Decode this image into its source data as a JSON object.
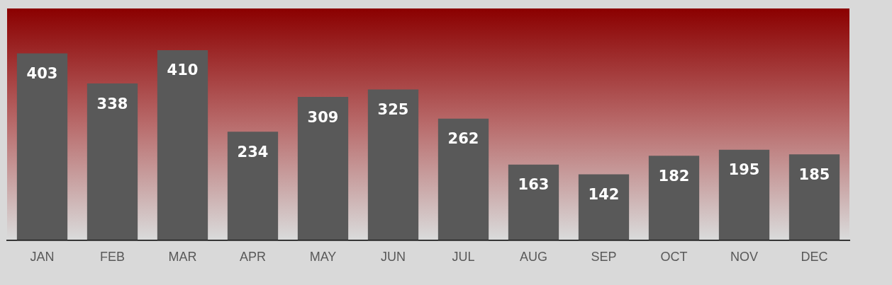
{
  "chart_data": {
    "type": "bar",
    "categories": [
      "JAN",
      "FEB",
      "MAR",
      "APR",
      "MAY",
      "JUN",
      "JUL",
      "AUG",
      "SEP",
      "OCT",
      "NOV",
      "DEC"
    ],
    "values": [
      403,
      338,
      410,
      234,
      309,
      325,
      262,
      163,
      142,
      182,
      195,
      185
    ],
    "color": "#595959",
    "data_labels": true,
    "grid": false,
    "legend": false
  }
}
